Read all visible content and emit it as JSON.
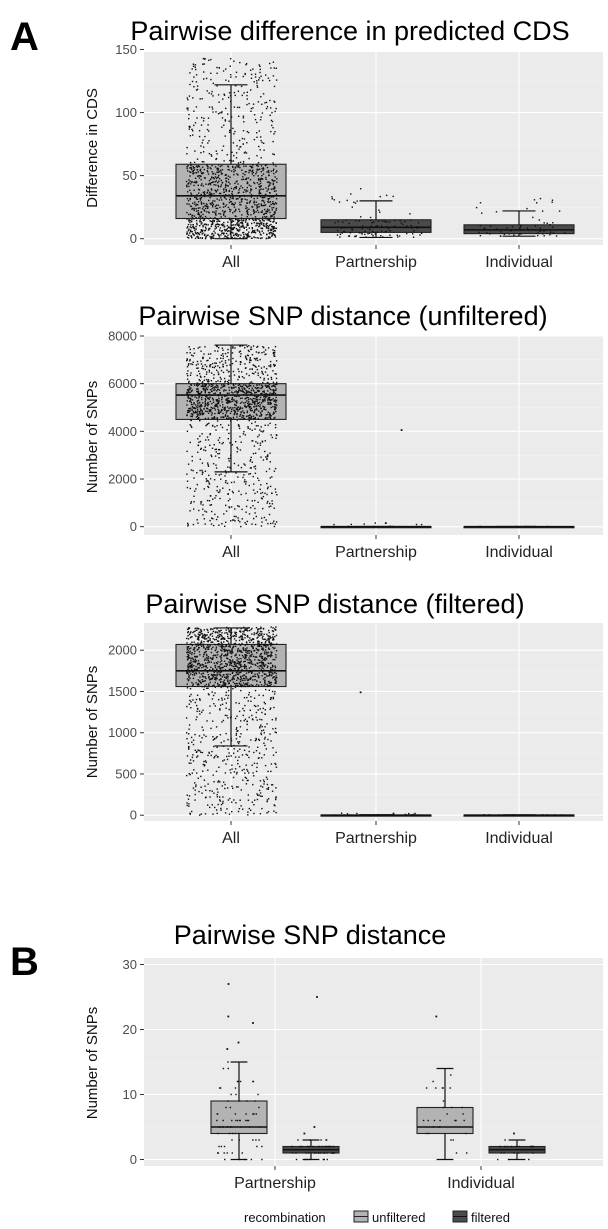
{
  "colors": {
    "unfiltered": "#b3b3b3",
    "filtered": "#4a4a4a",
    "points": "#111111",
    "panel_bg": "#ebebeb"
  },
  "panel_labels": [
    "A",
    "B"
  ],
  "chart_data": [
    {
      "type": "box",
      "panel": "A",
      "title": "Pairwise difference in predicted CDS",
      "xlabel": "",
      "ylabel": "Difference in CDS",
      "categories": [
        "All",
        "Partnership",
        "Individual"
      ],
      "yticks": [
        0,
        50,
        100,
        150
      ],
      "ylim": [
        -5,
        148
      ],
      "grid": true,
      "jitter_points": true,
      "boxes": [
        {
          "category": "All",
          "min": 0,
          "q1": 16,
          "median": 34,
          "q3": 59,
          "max": 122,
          "color": "unfiltered",
          "point_range": [
            0,
            143
          ],
          "point_count": 1400
        },
        {
          "category": "Partnership",
          "min": 1,
          "q1": 5,
          "median": 9,
          "q3": 15,
          "max": 30,
          "color": "filtered",
          "point_range": [
            1,
            40
          ],
          "point_count": 110
        },
        {
          "category": "Individual",
          "min": 2,
          "q1": 4,
          "median": 7,
          "q3": 11,
          "max": 22,
          "color": "filtered",
          "point_range": [
            2,
            40
          ],
          "point_count": 60
        }
      ]
    },
    {
      "type": "box",
      "panel": "A",
      "title": "Pairwise SNP distance (unfiltered)",
      "xlabel": "",
      "ylabel": "Number of SNPs",
      "categories": [
        "All",
        "Partnership",
        "Individual"
      ],
      "yticks": [
        0,
        2000,
        4000,
        6000,
        8000
      ],
      "ylim": [
        -350,
        8000
      ],
      "grid": true,
      "jitter_points": true,
      "boxes": [
        {
          "category": "All",
          "min": 2300,
          "q1": 4500,
          "median": 5520,
          "q3": 6000,
          "max": 7620,
          "color": "unfiltered",
          "point_range": [
            0,
            7600
          ],
          "point_count": 1400
        },
        {
          "category": "Partnership",
          "min": 0,
          "q1": 0,
          "median": 0,
          "q3": 5,
          "max": 10,
          "color": "filtered",
          "point_range": [
            0,
            150
          ],
          "point_count": 40,
          "outliers": [
            4050,
            150
          ]
        },
        {
          "category": "Individual",
          "min": 0,
          "q1": 0,
          "median": 0,
          "q3": 5,
          "max": 10,
          "color": "filtered",
          "point_range": [
            0,
            10
          ],
          "point_count": 20
        }
      ]
    },
    {
      "type": "box",
      "panel": "A",
      "title": "Pairwise SNP distance (filtered)",
      "xlabel": "",
      "ylabel": "Number of SNPs",
      "categories": [
        "All",
        "Partnership",
        "Individual"
      ],
      "yticks": [
        0,
        500,
        1000,
        1500,
        2000
      ],
      "ylim": [
        -70,
        2330
      ],
      "grid": true,
      "jitter_points": true,
      "boxes": [
        {
          "category": "All",
          "min": 840,
          "q1": 1560,
          "median": 1750,
          "q3": 2070,
          "max": 2270,
          "color": "unfiltered",
          "point_range": [
            0,
            2280
          ],
          "point_count": 1600
        },
        {
          "category": "Partnership",
          "min": 0,
          "q1": 0,
          "median": 1,
          "q3": 3,
          "max": 6,
          "color": "filtered",
          "point_range": [
            0,
            25
          ],
          "point_count": 40,
          "outliers": [
            1490,
            20
          ]
        },
        {
          "category": "Individual",
          "min": 0,
          "q1": 0,
          "median": 1,
          "q3": 3,
          "max": 5,
          "color": "filtered",
          "point_range": [
            0,
            5
          ],
          "point_count": 20
        }
      ]
    },
    {
      "type": "box",
      "panel": "B",
      "title": "Pairwise SNP distance",
      "xlabel": "",
      "ylabel": "Number of SNPs",
      "categories": [
        "Partnership",
        "Individual"
      ],
      "yticks": [
        0,
        10,
        20,
        30
      ],
      "ylim": [
        -1,
        31
      ],
      "grid": true,
      "jitter_points": true,
      "legend": {
        "title": "recombination",
        "position": "bottom",
        "entries": [
          "unfiltered",
          "filtered"
        ]
      },
      "boxes": [
        {
          "category": "Partnership",
          "group": "unfiltered",
          "min": 0,
          "q1": 4,
          "median": 5,
          "q3": 9,
          "max": 15,
          "color": "unfiltered",
          "outliers": [
            27,
            22,
            21,
            18,
            17
          ],
          "point_range": [
            0,
            15
          ],
          "point_count": 75
        },
        {
          "category": "Partnership",
          "group": "filtered",
          "min": 0,
          "q1": 1,
          "median": 1.5,
          "q3": 2,
          "max": 3,
          "color": "filtered",
          "outliers": [
            25,
            5,
            4
          ],
          "point_range": [
            0,
            3
          ],
          "point_count": 45
        },
        {
          "category": "Individual",
          "group": "unfiltered",
          "min": 0,
          "q1": 4,
          "median": 5,
          "q3": 8,
          "max": 14,
          "color": "unfiltered",
          "outliers": [
            22
          ],
          "point_range": [
            0,
            14
          ],
          "point_count": 30
        },
        {
          "category": "Individual",
          "group": "filtered",
          "min": 0,
          "q1": 1,
          "median": 1.5,
          "q3": 2,
          "max": 3,
          "color": "filtered",
          "outliers": [
            4
          ],
          "point_range": [
            0,
            3
          ],
          "point_count": 20
        }
      ]
    }
  ]
}
